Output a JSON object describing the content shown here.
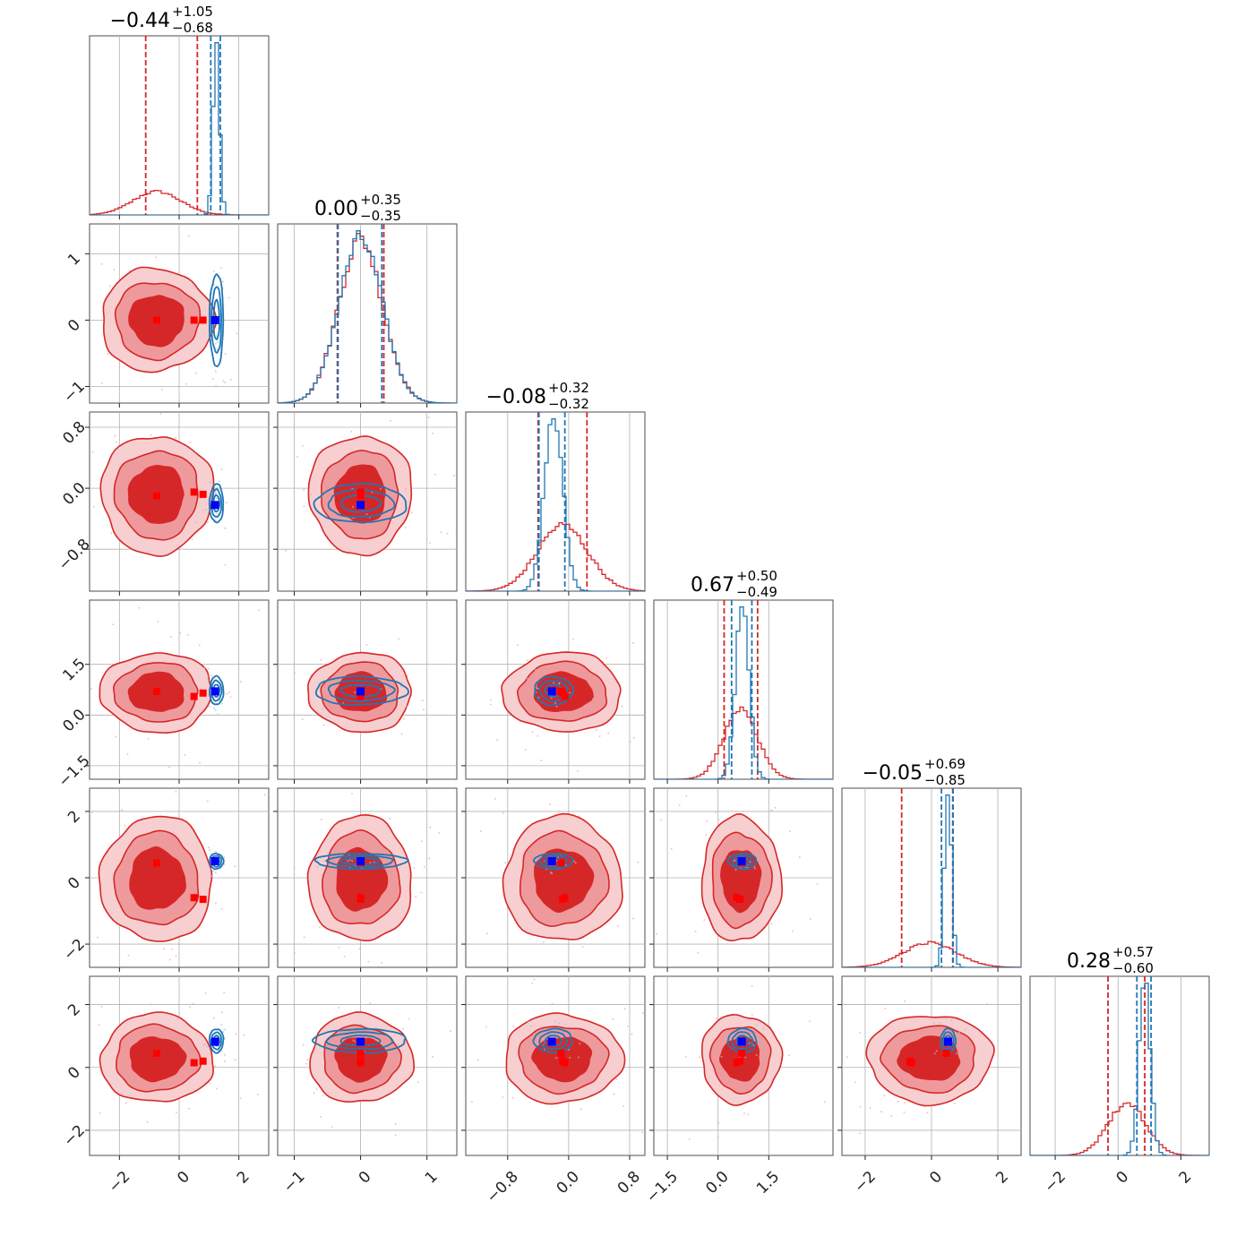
{
  "chart_data": {
    "type": "corner",
    "n_params": 6,
    "grid": true,
    "colors": {
      "red": "#d62728",
      "blue": "#1f77b4",
      "red_light": "#ee9a9c",
      "red_faint": "#f7cfd0",
      "marker_red": "#ff0000",
      "marker_blue": "#0000ff",
      "scatter_red": "#f4a6b0",
      "scatter_blue": "#9cc3e0"
    },
    "params": [
      {
        "range": [
          -3.0,
          3.0
        ],
        "ticks": [
          -2,
          0,
          2
        ],
        "tick_labels": [
          "−2",
          "0",
          "2"
        ],
        "title": {
          "median": "−0.44",
          "plus": "+1.05",
          "minus": "−0.68"
        },
        "red": {
          "mean": -0.75,
          "sd": 0.8,
          "q": [
            -1.12,
            0.61
          ]
        },
        "blue": {
          "mean": 1.25,
          "sd": 0.11,
          "q": [
            1.06,
            1.38
          ]
        },
        "true_blue": 1.2,
        "true_red": [
          -0.75,
          0.5,
          0.8
        ]
      },
      {
        "range": [
          -1.25,
          1.45
        ],
        "ticks": [
          -1,
          0,
          1
        ],
        "tick_labels": [
          "−1",
          "0",
          "1"
        ],
        "title": {
          "median": "0.00",
          "plus": "+0.35",
          "minus": "−0.35"
        },
        "red": {
          "mean": 0.0,
          "sd": 0.33,
          "q": [
            -0.35,
            0.35
          ]
        },
        "blue": {
          "mean": 0.0,
          "sd": 0.33,
          "q": [
            -0.34,
            0.32
          ]
        },
        "true_blue": 0.0,
        "true_red": [
          0.0,
          0.0,
          0.0
        ]
      },
      {
        "range": [
          -1.35,
          1.0
        ],
        "ticks": [
          -0.8,
          0.0,
          0.8
        ],
        "tick_labels": [
          "−0.8",
          "0.0",
          "0.8"
        ],
        "title": {
          "median": "−0.08",
          "plus": "+0.32",
          "minus": "−0.32"
        },
        "red": {
          "mean": -0.08,
          "sd": 0.33,
          "q": [
            -0.4,
            0.24
          ]
        },
        "blue": {
          "mean": -0.2,
          "sd": 0.12,
          "q": [
            -0.39,
            -0.05
          ]
        },
        "true_blue": -0.22,
        "true_red": [
          -0.1,
          -0.05,
          -0.08
        ]
      },
      {
        "range": [
          -1.9,
          3.4
        ],
        "ticks": [
          -1.5,
          0.0,
          1.5
        ],
        "tick_labels": [
          "−1.5",
          "0.0",
          "1.5"
        ],
        "title": {
          "median": "0.67",
          "plus": "+0.50",
          "minus": "−0.49"
        },
        "red": {
          "mean": 0.67,
          "sd": 0.5,
          "q": [
            0.18,
            1.17
          ]
        },
        "blue": {
          "mean": 0.72,
          "sd": 0.2,
          "q": [
            0.4,
            1.0
          ]
        },
        "true_blue": 0.7,
        "true_red": [
          0.7,
          0.55,
          0.65
        ]
      },
      {
        "range": [
          -2.7,
          2.7
        ],
        "ticks": [
          -2,
          0,
          2
        ],
        "tick_labels": [
          "−2",
          "0",
          "2"
        ],
        "title": {
          "median": "−0.05",
          "plus": "+0.69",
          "minus": "−0.85"
        },
        "red": {
          "mean": -0.05,
          "sd": 0.8,
          "q": [
            -0.9,
            0.64
          ]
        },
        "blue": {
          "mean": 0.5,
          "sd": 0.11,
          "q": [
            0.3,
            0.65
          ]
        },
        "true_blue": 0.5,
        "true_red": [
          0.45,
          -0.6,
          -0.65
        ]
      },
      {
        "range": [
          -2.8,
          2.9
        ],
        "ticks": [
          -2,
          0,
          2
        ],
        "tick_labels": [
          "−2",
          "0",
          "2"
        ],
        "title": {
          "median": "0.28",
          "plus": "+0.57",
          "minus": "−0.60"
        },
        "red": {
          "mean": 0.28,
          "sd": 0.6,
          "q": [
            -0.32,
            0.85
          ]
        },
        "blue": {
          "mean": 0.85,
          "sd": 0.18,
          "q": [
            0.6,
            1.05
          ]
        },
        "true_blue": 0.82,
        "true_red": [
          0.45,
          0.15,
          0.2
        ]
      }
    ]
  }
}
